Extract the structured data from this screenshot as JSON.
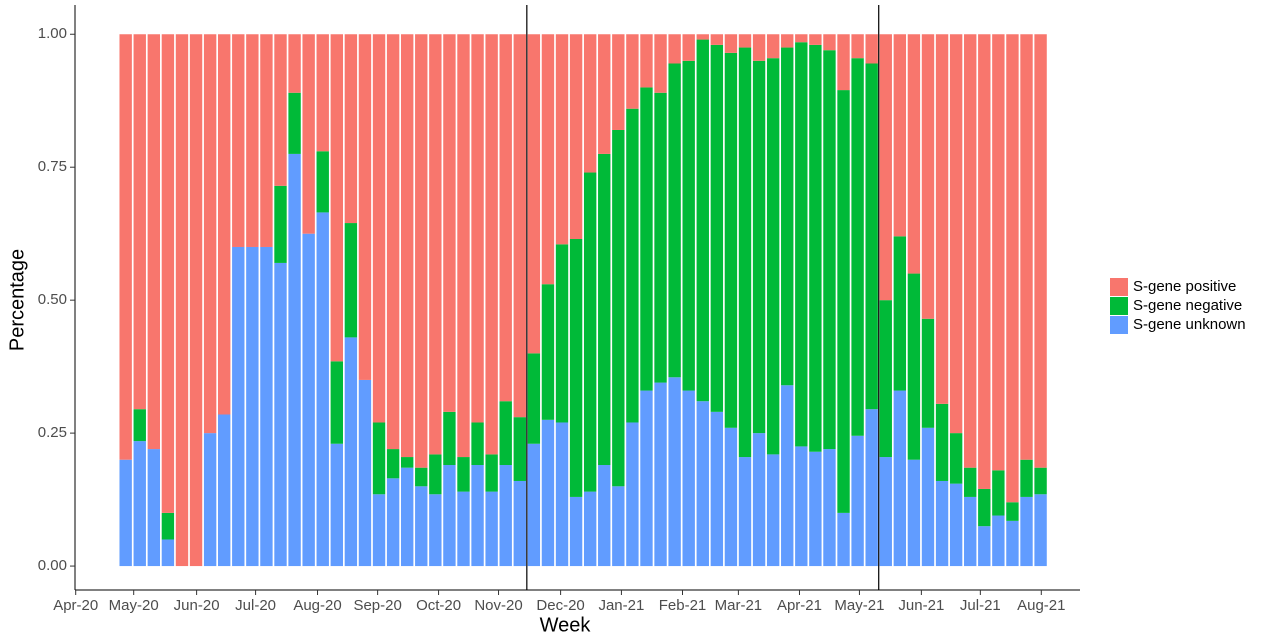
{
  "chart_data": {
    "type": "stacked-bar",
    "xlabel": "Week",
    "ylabel": "Percentage",
    "categories": [
      null,
      null,
      null,
      null,
      null,
      null,
      null,
      null,
      null,
      null,
      null,
      null,
      null,
      null,
      null,
      null,
      null,
      null,
      null,
      null,
      null,
      null,
      null,
      null,
      null,
      null,
      null,
      null,
      null,
      null,
      null,
      null,
      null,
      null,
      null,
      null,
      null,
      null,
      null,
      null,
      null,
      null,
      null,
      null,
      null,
      null,
      null,
      null,
      null,
      null,
      null,
      null,
      null,
      null,
      null,
      null,
      null,
      null,
      null,
      null,
      null,
      null,
      null,
      null,
      null,
      null
    ],
    "series": [
      {
        "name": "S-gene positive",
        "color": "#f8766d",
        "values": [
          0.8,
          0.705,
          0.78,
          0.9,
          1,
          1,
          0.75,
          0.715,
          0.4,
          0.4,
          0.4,
          0.285,
          0.11,
          0.375,
          0.22,
          0.615,
          0.355,
          0.65,
          0.73,
          0.78,
          0.795,
          0.815,
          0.79,
          0.71,
          0.795,
          0.73,
          0.79,
          0.69,
          0.72,
          0.6,
          0.47,
          0.395,
          0.385,
          0.26,
          0.225,
          0.18,
          0.14,
          0.1,
          0.11,
          0.055,
          0.05,
          0.01,
          0.02,
          0.035,
          0.025,
          0.05,
          0.045,
          0.025,
          0.015,
          0.02,
          0.03,
          0.105,
          0.045,
          0.055,
          0.5,
          0.38,
          0.45,
          0.535,
          0.695,
          0.75,
          0.815,
          0.855,
          0.82,
          0.88,
          0.8,
          0.815
        ]
      },
      {
        "name": "S-gene negative",
        "color": "#00ba38",
        "values": [
          0,
          0.06,
          0,
          0.05,
          0,
          0,
          0,
          0,
          0,
          0,
          0,
          0.145,
          0.115,
          0,
          0.115,
          0.155,
          0.215,
          0,
          0.135,
          0.055,
          0.02,
          0.035,
          0.075,
          0.1,
          0.065,
          0.08,
          0.07,
          0.12,
          0.12,
          0.17,
          0.255,
          0.335,
          0.485,
          0.6,
          0.585,
          0.67,
          0.59,
          0.57,
          0.545,
          0.59,
          0.62,
          0.68,
          0.69,
          0.705,
          0.77,
          0.7,
          0.745,
          0.635,
          0.76,
          0.765,
          0.75,
          0.795,
          0.71,
          0.65,
          0.295,
          0.29,
          0.35,
          0.205,
          0.145,
          0.095,
          0.055,
          0.07,
          0.085,
          0.035,
          0.07,
          0.05
        ]
      },
      {
        "name": "S-gene unknown",
        "color": "#619cff",
        "values": [
          0.2,
          0.235,
          0.22,
          0.05,
          0,
          0,
          0.25,
          0.285,
          0.6,
          0.6,
          0.6,
          0.57,
          0.775,
          0.625,
          0.665,
          0.23,
          0.43,
          0.35,
          0.135,
          0.165,
          0.185,
          0.15,
          0.135,
          0.19,
          0.14,
          0.19,
          0.14,
          0.19,
          0.16,
          0.23,
          0.275,
          0.27,
          0.13,
          0.14,
          0.19,
          0.15,
          0.27,
          0.33,
          0.345,
          0.355,
          0.33,
          0.31,
          0.29,
          0.26,
          0.205,
          0.25,
          0.21,
          0.34,
          0.225,
          0.215,
          0.22,
          0.1,
          0.245,
          0.295,
          0.205,
          0.33,
          0.2,
          0.26,
          0.16,
          0.155,
          0.13,
          0.075,
          0.095,
          0.085,
          0.13,
          0.135
        ]
      }
    ],
    "xlim": [
      -3.6,
      67.8
    ],
    "xticks": [
      {
        "value": -3.55,
        "label": "Apr-20"
      },
      {
        "value": 0.57,
        "label": "May-20"
      },
      {
        "value": 5.04,
        "label": "Jun-20"
      },
      {
        "value": 9.23,
        "label": "Jul-20"
      },
      {
        "value": 13.63,
        "label": "Aug-20"
      },
      {
        "value": 17.9,
        "label": "Sep-20"
      },
      {
        "value": 22.23,
        "label": "Oct-20"
      },
      {
        "value": 26.49,
        "label": "Nov-20"
      },
      {
        "value": 30.9,
        "label": "Dec-20"
      },
      {
        "value": 35.22,
        "label": "Jan-21"
      },
      {
        "value": 39.56,
        "label": "Feb-21"
      },
      {
        "value": 43.53,
        "label": "Mar-21"
      },
      {
        "value": 47.87,
        "label": "Apr-21"
      },
      {
        "value": 52.13,
        "label": "May-21"
      },
      {
        "value": 56.53,
        "label": "Jun-21"
      },
      {
        "value": 60.72,
        "label": "Jul-21"
      },
      {
        "value": 65.05,
        "label": "Aug-21"
      }
    ],
    "ylim": [
      -0.045,
      1.055
    ],
    "yticks": [
      {
        "value": 0,
        "label": "0.00"
      },
      {
        "value": 0.25,
        "label": "0.25"
      },
      {
        "value": 0.5,
        "label": "0.50"
      },
      {
        "value": 0.75,
        "label": "0.75"
      },
      {
        "value": 1,
        "label": "1.00"
      }
    ],
    "vlines": [
      28.5,
      53.5
    ],
    "grid": false,
    "legend": "right"
  }
}
